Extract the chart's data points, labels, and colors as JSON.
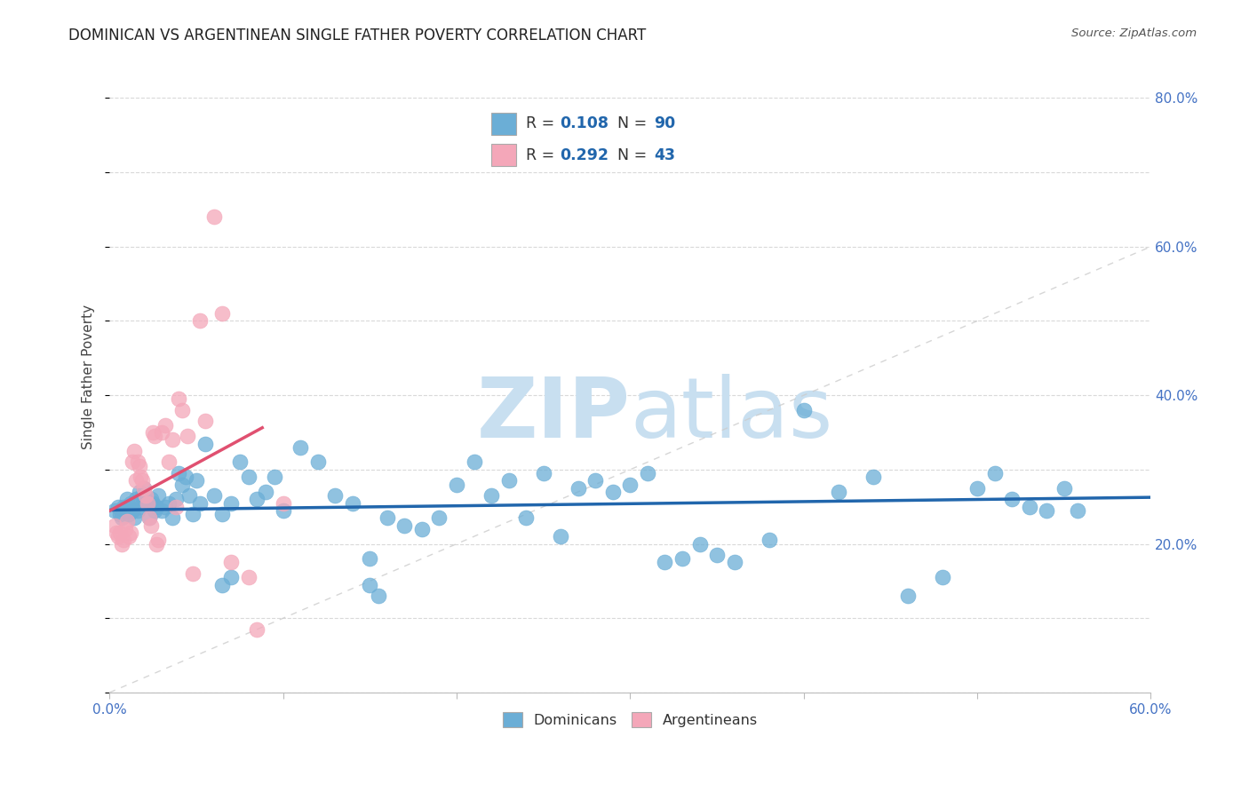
{
  "title": "DOMINICAN VS ARGENTINEAN SINGLE FATHER POVERTY CORRELATION CHART",
  "source": "Source: ZipAtlas.com",
  "ylabel": "Single Father Poverty",
  "xlim": [
    0.0,
    0.6
  ],
  "ylim": [
    0.0,
    0.85
  ],
  "xticks": [
    0.0,
    0.1,
    0.2,
    0.3,
    0.4,
    0.5,
    0.6
  ],
  "yticks": [
    0.0,
    0.2,
    0.4,
    0.6,
    0.8
  ],
  "right_ytick_labels": [
    "",
    "20.0%",
    "40.0%",
    "60.0%",
    "80.0%"
  ],
  "bottom_xtick_labels": [
    "0.0%",
    "",
    "",
    "",
    "",
    "",
    "60.0%"
  ],
  "blue_R": 0.108,
  "blue_N": 90,
  "pink_R": 0.292,
  "pink_N": 43,
  "blue_color": "#6baed6",
  "pink_color": "#f4a7b9",
  "blue_line_color": "#2166ac",
  "pink_line_color": "#e05070",
  "ref_line_color": "#cccccc",
  "tick_color": "#4472c4",
  "watermark_color": "#c8dff0",
  "blue_trend_x0": 0.0,
  "blue_trend_y0": 0.238,
  "blue_trend_x1": 0.6,
  "blue_trend_y1": 0.275,
  "pink_trend_x0": 0.0,
  "pink_trend_y0": 0.215,
  "pink_trend_x1": 0.085,
  "pink_trend_y1": 0.33,
  "blue_points_x": [
    0.003,
    0.005,
    0.006,
    0.007,
    0.008,
    0.009,
    0.01,
    0.011,
    0.012,
    0.013,
    0.014,
    0.015,
    0.016,
    0.017,
    0.018,
    0.019,
    0.02,
    0.021,
    0.022,
    0.023,
    0.024,
    0.025,
    0.026,
    0.027,
    0.028,
    0.03,
    0.032,
    0.034,
    0.036,
    0.038,
    0.04,
    0.042,
    0.044,
    0.046,
    0.048,
    0.05,
    0.052,
    0.055,
    0.06,
    0.065,
    0.07,
    0.075,
    0.08,
    0.085,
    0.09,
    0.095,
    0.1,
    0.11,
    0.12,
    0.13,
    0.14,
    0.15,
    0.16,
    0.17,
    0.18,
    0.19,
    0.2,
    0.21,
    0.22,
    0.23,
    0.24,
    0.25,
    0.26,
    0.27,
    0.28,
    0.29,
    0.3,
    0.31,
    0.32,
    0.33,
    0.34,
    0.35,
    0.36,
    0.38,
    0.4,
    0.42,
    0.44,
    0.46,
    0.5,
    0.51,
    0.52,
    0.53,
    0.54,
    0.55,
    0.558,
    0.48,
    0.15,
    0.155,
    0.065,
    0.07
  ],
  "blue_points_y": [
    0.245,
    0.25,
    0.24,
    0.235,
    0.25,
    0.245,
    0.26,
    0.24,
    0.255,
    0.245,
    0.235,
    0.26,
    0.245,
    0.27,
    0.25,
    0.265,
    0.275,
    0.26,
    0.255,
    0.235,
    0.26,
    0.255,
    0.245,
    0.25,
    0.265,
    0.245,
    0.25,
    0.255,
    0.235,
    0.26,
    0.295,
    0.28,
    0.29,
    0.265,
    0.24,
    0.285,
    0.255,
    0.335,
    0.265,
    0.24,
    0.255,
    0.31,
    0.29,
    0.26,
    0.27,
    0.29,
    0.245,
    0.33,
    0.31,
    0.265,
    0.255,
    0.18,
    0.235,
    0.225,
    0.22,
    0.235,
    0.28,
    0.31,
    0.265,
    0.285,
    0.235,
    0.295,
    0.21,
    0.275,
    0.285,
    0.27,
    0.28,
    0.295,
    0.175,
    0.18,
    0.2,
    0.185,
    0.175,
    0.205,
    0.38,
    0.27,
    0.29,
    0.13,
    0.275,
    0.295,
    0.26,
    0.25,
    0.245,
    0.275,
    0.245,
    0.155,
    0.145,
    0.13,
    0.145,
    0.155
  ],
  "pink_points_x": [
    0.003,
    0.004,
    0.005,
    0.006,
    0.007,
    0.008,
    0.009,
    0.01,
    0.011,
    0.012,
    0.013,
    0.014,
    0.015,
    0.016,
    0.017,
    0.018,
    0.019,
    0.02,
    0.021,
    0.022,
    0.023,
    0.024,
    0.025,
    0.026,
    0.027,
    0.028,
    0.03,
    0.032,
    0.034,
    0.036,
    0.038,
    0.04,
    0.042,
    0.045,
    0.048,
    0.052,
    0.055,
    0.06,
    0.065,
    0.07,
    0.08,
    0.085,
    0.1
  ],
  "pink_points_y": [
    0.225,
    0.215,
    0.21,
    0.215,
    0.2,
    0.205,
    0.22,
    0.23,
    0.21,
    0.215,
    0.31,
    0.325,
    0.285,
    0.31,
    0.305,
    0.29,
    0.285,
    0.275,
    0.265,
    0.255,
    0.235,
    0.225,
    0.35,
    0.345,
    0.2,
    0.205,
    0.35,
    0.36,
    0.31,
    0.34,
    0.25,
    0.395,
    0.38,
    0.345,
    0.16,
    0.5,
    0.365,
    0.64,
    0.51,
    0.175,
    0.155,
    0.085,
    0.255
  ]
}
